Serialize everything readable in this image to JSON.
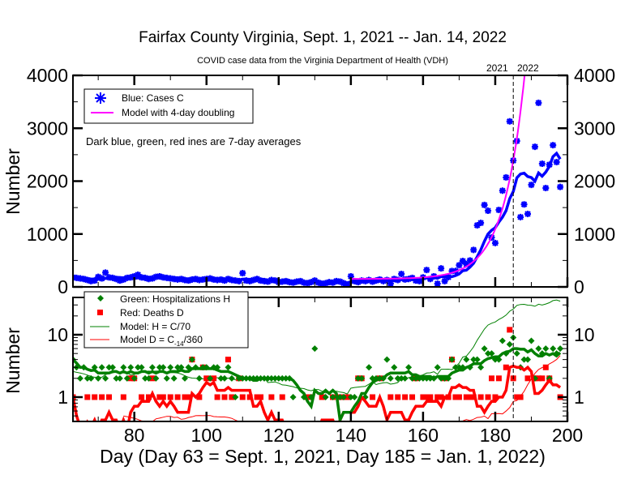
{
  "chart_data": [
    {
      "type": "scatter",
      "panel": "top",
      "title": "Fairfax County Virginia, Sept. 1, 2021 -- Jan. 14, 2022",
      "subtitle": "COVID case data from the Virginia Department of Health (VDH)",
      "ylabel": "Number",
      "xlim": [
        63,
        200
      ],
      "ylim": [
        0,
        4000
      ],
      "yticks": [
        "0",
        "1000",
        "2000",
        "3000",
        "4000"
      ],
      "year_marker": {
        "day": 185,
        "left_label": "2021",
        "right_label": "2022"
      },
      "annotation": "Dark blue, green, red ines are 7-day averages",
      "legend": {
        "placement": "top-left",
        "entries": [
          "Blue: Cases C",
          "Model with 4-day doubling"
        ]
      },
      "colors": {
        "cases": "#0000ff",
        "model": "#ff00ff"
      },
      "model": {
        "start_day": 140,
        "baseline": 150,
        "amplitude_at_day_180": 942,
        "doubling_days": 4
      },
      "cases_start_day": 63,
      "cases": [
        180,
        170,
        160,
        150,
        130,
        110,
        120,
        190,
        160,
        270,
        180,
        170,
        150,
        120,
        140,
        170,
        180,
        200,
        230,
        180,
        170,
        150,
        160,
        190,
        200,
        180,
        170,
        160,
        150,
        140,
        150,
        130,
        120,
        140,
        150,
        130,
        140,
        150,
        160,
        140,
        130,
        140,
        120,
        150,
        130,
        120,
        110,
        260,
        120,
        110,
        130,
        150,
        120,
        110,
        100,
        130,
        120,
        90,
        100,
        110,
        90,
        80,
        100,
        110,
        80,
        70,
        90,
        120,
        80,
        60,
        70,
        90,
        80,
        110,
        100,
        70,
        30,
        200,
        110,
        90,
        120,
        110,
        130,
        100,
        120,
        140,
        110,
        130,
        60,
        150,
        130,
        245,
        140,
        150,
        170,
        120,
        110,
        180,
        320,
        150,
        200,
        60,
        350,
        110,
        185,
        300,
        300,
        410,
        490,
        430,
        500,
        700,
        1165,
        1210,
        1550,
        1440,
        935,
        830,
        1455,
        1820,
        2070,
        3130,
        2390,
        2760,
        1320,
        1560,
        1380,
        1930,
        2650,
        3480,
        2330,
        1870,
        2310,
        2680,
        2360,
        1890
      ]
    },
    {
      "type": "scatter",
      "panel": "bottom",
      "scale": "log",
      "xlabel": "Day (Day 63 = Sept. 1, 2021, Day 185 = Jan. 1, 2022)",
      "ylabel": "Number",
      "xticks": [
        "80",
        "100",
        "120",
        "140",
        "160",
        "180",
        "200"
      ],
      "yticks": [
        "1",
        "10"
      ],
      "ylim": [
        0.4,
        40
      ],
      "legend": {
        "placement": "top-left",
        "entries": [
          "Green: Hospitalizations H",
          "Red: Deaths D",
          "Model: H = C/70",
          "Model D = C",
          "-14",
          "/360"
        ]
      },
      "colors": {
        "hosp": "#008000",
        "deaths": "#ff0000"
      },
      "hosp_divisor": 70,
      "death_divisor": 360,
      "death_lag_days": 14,
      "start_day": 63,
      "hospitalizations": [
        4,
        3,
        2,
        3,
        2,
        2,
        3,
        2,
        3,
        2,
        3,
        3,
        2,
        2,
        3,
        2,
        3,
        2,
        3,
        3,
        2,
        2,
        3,
        2,
        3,
        3,
        2,
        3,
        2,
        3,
        3,
        2,
        3,
        4,
        3,
        2,
        3,
        3,
        2,
        3,
        3,
        2,
        2,
        3,
        2,
        1,
        2,
        2,
        2,
        2,
        2,
        2,
        2,
        2,
        2,
        2,
        2,
        2,
        2,
        2,
        2,
        1,
        0,
        0,
        1,
        0,
        1,
        6,
        0,
        0,
        1,
        0,
        1,
        0,
        1,
        1,
        0,
        1,
        1,
        2,
        2,
        1,
        3,
        2,
        2,
        2,
        2,
        4,
        2,
        3,
        2,
        2,
        2,
        3,
        2,
        2,
        2,
        2,
        2,
        2,
        2,
        3,
        2,
        2,
        2,
        4,
        3,
        3,
        3,
        4,
        3,
        4,
        4,
        3,
        6,
        5,
        5,
        4,
        4,
        8,
        5,
        7,
        9,
        5,
        3,
        4,
        4,
        8,
        2,
        6,
        5,
        6,
        2,
        6,
        5,
        6
      ],
      "deaths": [
        1,
        0,
        0,
        0,
        1,
        0,
        1,
        0,
        1,
        0,
        1,
        0,
        0,
        0,
        1,
        0,
        2,
        2,
        0,
        1,
        0,
        1,
        2,
        0,
        1,
        1,
        0,
        1,
        0,
        1,
        0,
        1,
        1,
        4,
        0,
        1,
        3,
        2,
        0,
        2,
        1,
        0,
        1,
        4,
        1,
        0,
        2,
        1,
        0,
        1,
        0,
        1,
        1,
        0,
        0,
        1,
        0,
        0,
        1,
        0,
        0,
        0,
        0,
        0,
        0,
        1,
        1,
        0,
        0,
        1,
        0,
        0,
        1,
        0,
        1,
        1,
        1,
        0,
        0,
        2,
        2,
        0,
        0,
        1,
        0,
        2,
        0,
        0,
        1,
        0,
        1,
        0,
        1,
        0,
        1,
        2,
        0,
        1,
        1,
        1,
        0,
        1,
        1,
        2,
        1,
        4,
        1,
        1,
        0,
        1,
        1,
        1,
        0,
        1,
        0,
        1,
        2,
        1,
        2,
        0,
        3,
        12,
        2,
        1,
        1,
        0,
        2,
        0,
        2,
        2,
        2,
        3,
        2,
        0,
        0,
        1
      ]
    }
  ]
}
